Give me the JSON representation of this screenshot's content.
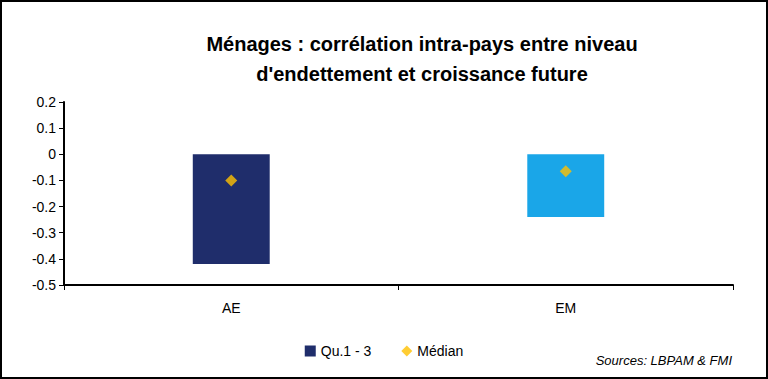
{
  "chart_data": {
    "type": "bar",
    "title": "Ménages : corrélation intra-pays entre niveau\nd'endettement et croissance future",
    "annotation": "Sources: LBPAM & FMI",
    "categories": [
      "AE",
      "EM"
    ],
    "series": [
      {
        "name": "Qu.1 - 3",
        "type": "bar",
        "colors": [
          "#1f2d6b",
          "#1aa6e8"
        ],
        "low": [
          -0.42,
          -0.24
        ],
        "high": [
          0,
          0
        ]
      },
      {
        "name": "Médian",
        "type": "scatter",
        "color": "#ffc000",
        "marker": "diamond",
        "values": [
          -0.1,
          -0.065
        ]
      }
    ],
    "ylim": [
      -0.5,
      0.2
    ],
    "yticks": [
      -0.5,
      -0.4,
      -0.3,
      -0.2,
      -0.1,
      0,
      0.1,
      0.2
    ],
    "grid": false,
    "legend": "bottom"
  }
}
